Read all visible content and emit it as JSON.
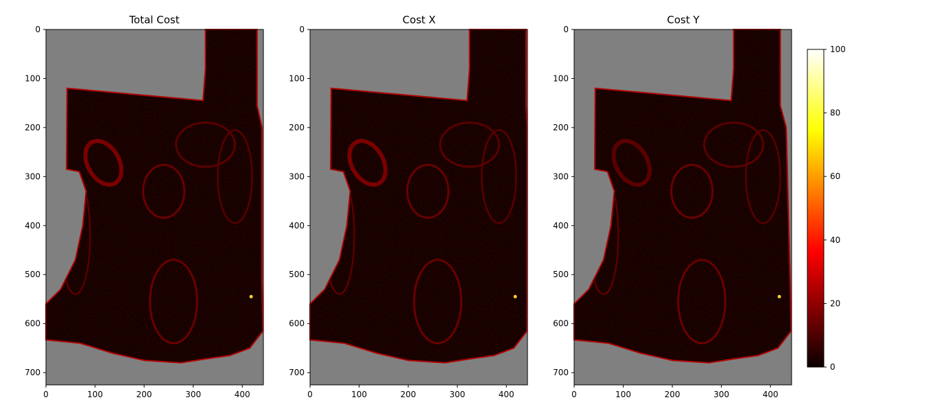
{
  "chart_data": [
    {
      "type": "heatmap",
      "title": "Total Cost",
      "xlim": [
        0,
        443
      ],
      "ylim": [
        725,
        0
      ],
      "x_ticks": [
        "0",
        "100",
        "200",
        "300",
        "400"
      ],
      "y_ticks": [
        "0",
        "100",
        "200",
        "300",
        "400",
        "500",
        "600",
        "700"
      ],
      "x_tick_values": [
        0,
        100,
        200,
        300,
        400
      ],
      "y_tick_values": [
        0,
        100,
        200,
        300,
        400,
        500,
        600,
        700
      ],
      "background_color": "#808080",
      "colormap": "hot",
      "region_outline": [
        [
          325,
          0
        ],
        [
          430,
          0
        ],
        [
          430,
          155
        ],
        [
          440,
          200
        ],
        [
          440,
          515
        ],
        [
          442,
          615
        ],
        [
          415,
          650
        ],
        [
          375,
          665
        ],
        [
          325,
          672
        ],
        [
          275,
          680
        ],
        [
          200,
          675
        ],
        [
          135,
          660
        ],
        [
          70,
          640
        ],
        [
          0,
          633
        ],
        [
          0,
          560
        ],
        [
          30,
          530
        ],
        [
          60,
          470
        ],
        [
          75,
          400
        ],
        [
          82,
          330
        ],
        [
          68,
          290
        ],
        [
          42,
          285
        ],
        [
          43,
          120
        ],
        [
          320,
          145
        ],
        [
          325,
          80
        ]
      ]
    },
    {
      "type": "heatmap",
      "title": "Cost X",
      "xlim": [
        0,
        443
      ],
      "ylim": [
        725,
        0
      ],
      "x_ticks": [
        "0",
        "100",
        "200",
        "300",
        "400"
      ],
      "y_ticks": [
        "0",
        "100",
        "200",
        "300",
        "400",
        "500",
        "600",
        "700"
      ],
      "x_tick_values": [
        0,
        100,
        200,
        300,
        400
      ],
      "y_tick_values": [
        0,
        100,
        200,
        300,
        400,
        500,
        600,
        700
      ],
      "background_color": "#808080",
      "colormap": "hot",
      "region_outline": [
        [
          325,
          0
        ],
        [
          440,
          0
        ],
        [
          440,
          155
        ],
        [
          442,
          200
        ],
        [
          442,
          515
        ],
        [
          442,
          615
        ],
        [
          415,
          650
        ],
        [
          375,
          665
        ],
        [
          325,
          672
        ],
        [
          275,
          680
        ],
        [
          200,
          675
        ],
        [
          135,
          660
        ],
        [
          70,
          640
        ],
        [
          0,
          633
        ],
        [
          0,
          560
        ],
        [
          30,
          530
        ],
        [
          60,
          470
        ],
        [
          75,
          400
        ],
        [
          82,
          330
        ],
        [
          68,
          290
        ],
        [
          42,
          285
        ],
        [
          43,
          120
        ],
        [
          320,
          145
        ],
        [
          325,
          80
        ]
      ]
    },
    {
      "type": "heatmap",
      "title": "Cost Y",
      "xlim": [
        0,
        443
      ],
      "ylim": [
        725,
        0
      ],
      "x_ticks": [
        "0",
        "100",
        "200",
        "300",
        "400"
      ],
      "y_ticks": [
        "0",
        "100",
        "200",
        "300",
        "400",
        "500",
        "600",
        "700"
      ],
      "x_tick_values": [
        0,
        100,
        200,
        300,
        400
      ],
      "y_tick_values": [
        0,
        100,
        200,
        300,
        400,
        500,
        600,
        700
      ],
      "background_color": "#808080",
      "colormap": "hot",
      "region_outline": [
        [
          325,
          0
        ],
        [
          420,
          0
        ],
        [
          420,
          155
        ],
        [
          432,
          200
        ],
        [
          440,
          515
        ],
        [
          442,
          615
        ],
        [
          415,
          650
        ],
        [
          375,
          665
        ],
        [
          325,
          672
        ],
        [
          275,
          680
        ],
        [
          200,
          675
        ],
        [
          135,
          660
        ],
        [
          70,
          640
        ],
        [
          0,
          633
        ],
        [
          0,
          560
        ],
        [
          30,
          530
        ],
        [
          60,
          470
        ],
        [
          75,
          400
        ],
        [
          82,
          330
        ],
        [
          68,
          290
        ],
        [
          42,
          285
        ],
        [
          43,
          120
        ],
        [
          320,
          145
        ],
        [
          325,
          80
        ]
      ]
    }
  ],
  "colorbar": {
    "range": [
      0,
      100
    ],
    "ticks": [
      "0",
      "20",
      "40",
      "60",
      "80",
      "100"
    ],
    "tick_values": [
      0,
      20,
      40,
      60,
      80,
      100
    ],
    "colormap": "hot"
  }
}
